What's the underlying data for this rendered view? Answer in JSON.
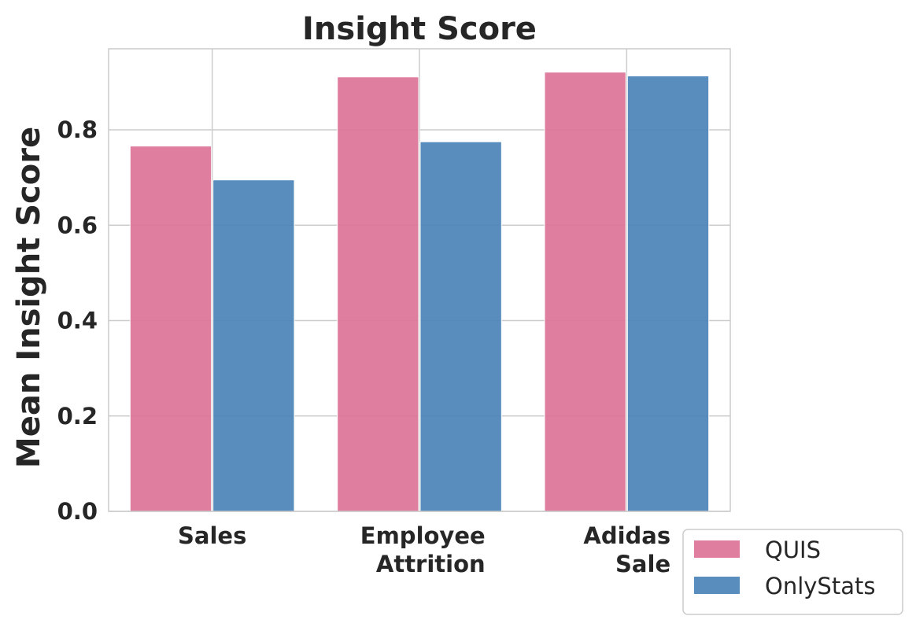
{
  "chart_data": {
    "type": "bar",
    "title": "Insight Score",
    "xlabel": "",
    "ylabel": "Mean Insight Score",
    "categories": [
      [
        "Sales"
      ],
      [
        "Employee",
        "Attrition"
      ],
      [
        "Adidas",
        "Sale"
      ]
    ],
    "series": [
      {
        "name": "QUIS",
        "color": "#dc7396",
        "values": [
          0.766,
          0.911,
          0.921
        ]
      },
      {
        "name": "OnlyStats",
        "color": "#4a83b9",
        "values": [
          0.695,
          0.775,
          0.913
        ]
      }
    ],
    "ylim": [
      0,
      0.97
    ],
    "yticks": [
      "0.0",
      "0.2",
      "0.4",
      "0.6",
      "0.8"
    ],
    "ytick_values": [
      0,
      0.2,
      0.4,
      0.6,
      0.8
    ],
    "grid": true,
    "legend_position": "bottom-right, outside plot",
    "grid_color": "#cccccc",
    "text_color": "#262626"
  }
}
